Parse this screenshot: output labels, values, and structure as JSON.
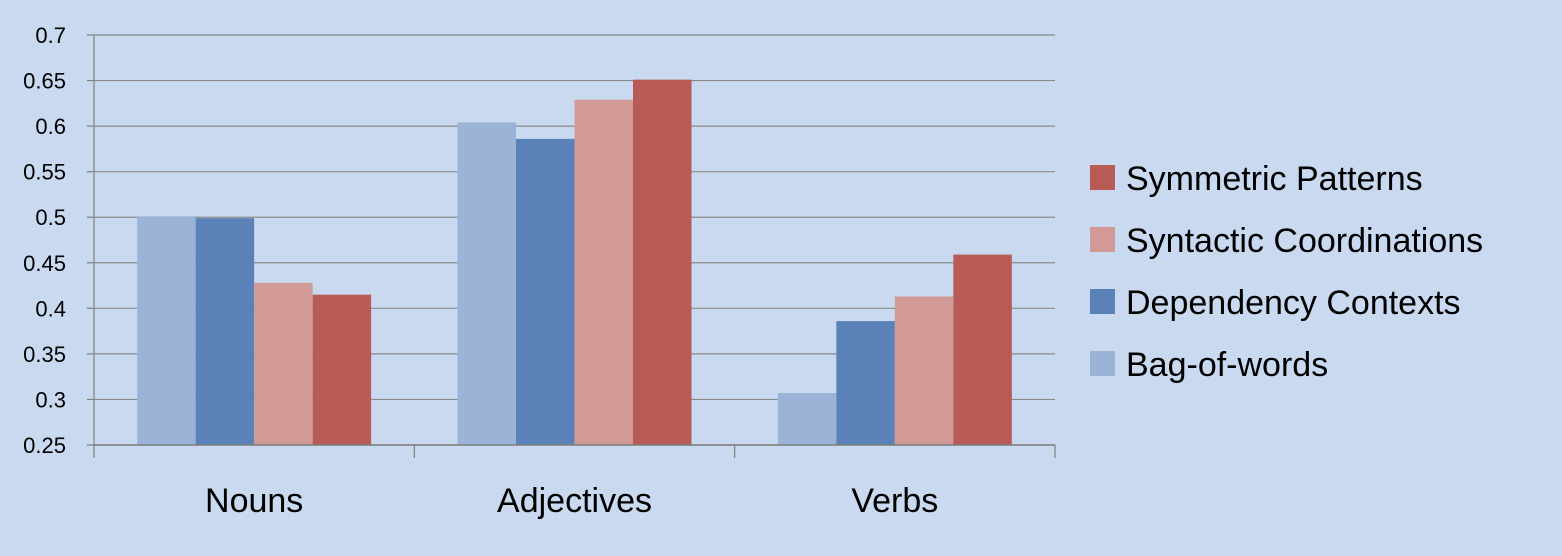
{
  "chart_data": {
    "type": "bar",
    "categories": [
      "Nouns",
      "Adjectives",
      "Verbs"
    ],
    "series": [
      {
        "name": "Bag-of-words",
        "color": "#9ab3d6",
        "values": [
          0.501,
          0.604,
          0.307
        ]
      },
      {
        "name": "Dependency Contexts",
        "color": "#5a82b8",
        "values": [
          0.499,
          0.586,
          0.386
        ]
      },
      {
        "name": "Syntactic Coordinations",
        "color": "#d29a97",
        "values": [
          0.428,
          0.629,
          0.413
        ]
      },
      {
        "name": "Symmetric Patterns",
        "color": "#b85a55",
        "values": [
          0.415,
          0.651,
          0.459
        ]
      }
    ],
    "ylim": [
      0.25,
      0.7
    ],
    "yticks": [
      "0.25",
      "0.3",
      "0.35",
      "0.4",
      "0.45",
      "0.5",
      "0.55",
      "0.6",
      "0.65",
      "0.7"
    ],
    "grid": true,
    "legend_position": "right",
    "legend_order": [
      "Symmetric Patterns",
      "Syntactic Coordinations",
      "Dependency Contexts",
      "Bag-of-words"
    ],
    "title": "",
    "xlabel": "",
    "ylabel": ""
  },
  "colors": {
    "background": "#c9daf0",
    "gridline": "#8a8a8a",
    "axis": "#7f7f7f"
  }
}
